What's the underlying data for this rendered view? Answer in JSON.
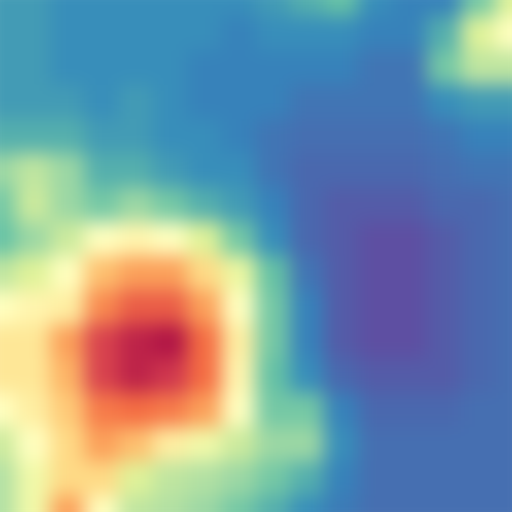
{
  "chart_data": {
    "type": "heatmap",
    "cells": [
      [
        0.22,
        0.22,
        0.2,
        0.2,
        0.2,
        0.2,
        0.2,
        0.2,
        0.22,
        0.25,
        0.28,
        0.2,
        0.18,
        0.18,
        0.3,
        0.45
      ],
      [
        0.22,
        0.22,
        0.2,
        0.2,
        0.2,
        0.2,
        0.2,
        0.18,
        0.2,
        0.2,
        0.2,
        0.18,
        0.18,
        0.25,
        0.45,
        0.55
      ],
      [
        0.22,
        0.22,
        0.2,
        0.2,
        0.2,
        0.2,
        0.18,
        0.18,
        0.18,
        0.18,
        0.18,
        0.16,
        0.16,
        0.3,
        0.4,
        0.4
      ],
      [
        0.22,
        0.22,
        0.22,
        0.2,
        0.22,
        0.2,
        0.18,
        0.18,
        0.18,
        0.16,
        0.16,
        0.16,
        0.16,
        0.2,
        0.22,
        0.22
      ],
      [
        0.25,
        0.25,
        0.25,
        0.22,
        0.22,
        0.2,
        0.2,
        0.18,
        0.16,
        0.15,
        0.15,
        0.15,
        0.15,
        0.16,
        0.18,
        0.18
      ],
      [
        0.35,
        0.4,
        0.35,
        0.25,
        0.25,
        0.22,
        0.2,
        0.2,
        0.16,
        0.14,
        0.14,
        0.14,
        0.14,
        0.15,
        0.16,
        0.16
      ],
      [
        0.3,
        0.42,
        0.35,
        0.3,
        0.35,
        0.3,
        0.25,
        0.22,
        0.18,
        0.14,
        0.12,
        0.12,
        0.12,
        0.14,
        0.14,
        0.15
      ],
      [
        0.28,
        0.35,
        0.42,
        0.55,
        0.58,
        0.55,
        0.45,
        0.3,
        0.2,
        0.14,
        0.12,
        0.1,
        0.1,
        0.12,
        0.14,
        0.15
      ],
      [
        0.4,
        0.45,
        0.55,
        0.7,
        0.75,
        0.75,
        0.65,
        0.48,
        0.28,
        0.16,
        0.12,
        0.1,
        0.1,
        0.12,
        0.14,
        0.15
      ],
      [
        0.55,
        0.58,
        0.6,
        0.78,
        0.85,
        0.85,
        0.75,
        0.55,
        0.3,
        0.18,
        0.12,
        0.1,
        0.1,
        0.12,
        0.14,
        0.15
      ],
      [
        0.62,
        0.62,
        0.75,
        0.9,
        0.95,
        0.97,
        0.82,
        0.6,
        0.3,
        0.18,
        0.12,
        0.1,
        0.1,
        0.12,
        0.14,
        0.15
      ],
      [
        0.62,
        0.62,
        0.72,
        0.9,
        0.95,
        0.92,
        0.82,
        0.58,
        0.28,
        0.2,
        0.14,
        0.12,
        0.12,
        0.12,
        0.14,
        0.15
      ],
      [
        0.55,
        0.6,
        0.68,
        0.8,
        0.82,
        0.8,
        0.75,
        0.55,
        0.3,
        0.3,
        0.18,
        0.14,
        0.14,
        0.14,
        0.15,
        0.15
      ],
      [
        0.42,
        0.55,
        0.65,
        0.75,
        0.7,
        0.6,
        0.5,
        0.42,
        0.35,
        0.35,
        0.2,
        0.15,
        0.15,
        0.15,
        0.15,
        0.15
      ],
      [
        0.38,
        0.5,
        0.65,
        0.65,
        0.45,
        0.4,
        0.38,
        0.35,
        0.3,
        0.25,
        0.18,
        0.15,
        0.15,
        0.15,
        0.15,
        0.15
      ],
      [
        0.38,
        0.5,
        0.75,
        0.55,
        0.4,
        0.38,
        0.35,
        0.3,
        0.25,
        0.2,
        0.17,
        0.15,
        0.15,
        0.15,
        0.15,
        0.15
      ]
    ],
    "zlim": [
      0.1,
      1
    ],
    "tick_labels": false,
    "grid": false
  }
}
